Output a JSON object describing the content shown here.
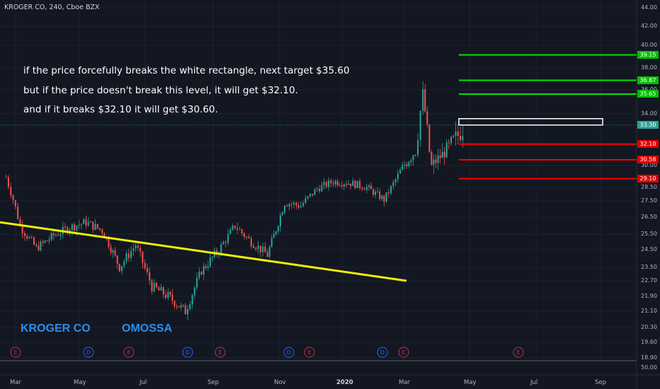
{
  "header": {
    "symbol_label": "KROGER CO, 240, Cboe BZX"
  },
  "annotations": [
    "if the price forcefully breaks the white rectangle, next target $35.60",
    "but if the price doesn't break this level, it will get $32.10.",
    "and if it breaks $32.10 it will get $30.60."
  ],
  "branding": {
    "left": "KROGER CO",
    "right": "OMOSSA"
  },
  "colors": {
    "background": "#131722",
    "up_candle": "#26a69a",
    "down_candle": "#ef5350",
    "trendline": "#f0f000",
    "target_line": "#00e600",
    "support_line": "#ff0000",
    "brand_text": "#2d8cf0"
  },
  "chart_data": {
    "type": "candlestick",
    "title": "KROGER CO, 240, Cboe BZX",
    "price_axis_ticks": [
      "44.00",
      "42.00",
      "40.00",
      "38.00",
      "36.00",
      "34.00",
      "32.00",
      "30.00",
      "28.50",
      "27.50",
      "26.50",
      "25.50",
      "24.50",
      "23.50",
      "22.70",
      "21.90",
      "21.10",
      "20.30",
      "19.60",
      "18.90",
      "50.00"
    ],
    "date_axis_ticks": [
      {
        "label": "Mar",
        "bold": false
      },
      {
        "label": "May",
        "bold": false
      },
      {
        "label": "Jul",
        "bold": false
      },
      {
        "label": "Sep",
        "bold": false
      },
      {
        "label": "Nov",
        "bold": false
      },
      {
        "label": "2020",
        "bold": true
      },
      {
        "label": "Mar",
        "bold": false
      },
      {
        "label": "May",
        "bold": false
      },
      {
        "label": "Jul",
        "bold": false
      },
      {
        "label": "Sep",
        "bold": false
      }
    ],
    "horizontal_levels": [
      {
        "price": 39.15,
        "label": "39.15",
        "color": "#00e600"
      },
      {
        "price": 36.87,
        "label": "36.87",
        "color": "#00e600"
      },
      {
        "price": 35.65,
        "label": "35.65",
        "color": "#00e600"
      },
      {
        "price": 33.3,
        "label": "33.30",
        "color": "#26a69a",
        "type": "last_price"
      },
      {
        "price": 32.1,
        "label": "32.10",
        "color": "#ff0000"
      },
      {
        "price": 30.58,
        "label": "30.58",
        "color": "#ff0000"
      },
      {
        "price": 29.1,
        "label": "29.10",
        "color": "#ff0000"
      }
    ],
    "rectangle": {
      "price_low": 33.3,
      "price_high": 33.7,
      "color": "#ffffff"
    },
    "trendline": {
      "start": {
        "date": "2019-02",
        "price": 26.2
      },
      "end": {
        "date": "2020-03",
        "price": 22.7
      },
      "color": "#f0f000"
    },
    "event_markers": [
      "E",
      "D",
      "E",
      "D",
      "E",
      "D",
      "E",
      "D",
      "E",
      "E"
    ],
    "series_close_path": [
      {
        "date": "2019-02-20",
        "price": 29.2
      },
      {
        "date": "2019-03-05",
        "price": 26.0
      },
      {
        "date": "2019-03-20",
        "price": 24.6
      },
      {
        "date": "2019-04-05",
        "price": 25.4
      },
      {
        "date": "2019-04-20",
        "price": 25.9
      },
      {
        "date": "2019-05-05",
        "price": 26.2
      },
      {
        "date": "2019-05-20",
        "price": 25.7
      },
      {
        "date": "2019-06-05",
        "price": 23.5
      },
      {
        "date": "2019-06-20",
        "price": 24.8
      },
      {
        "date": "2019-07-05",
        "price": 22.4
      },
      {
        "date": "2019-07-20",
        "price": 21.9
      },
      {
        "date": "2019-08-05",
        "price": 21.1
      },
      {
        "date": "2019-08-20",
        "price": 23.3
      },
      {
        "date": "2019-09-05",
        "price": 24.5
      },
      {
        "date": "2019-09-20",
        "price": 26.0
      },
      {
        "date": "2019-10-05",
        "price": 25.0
      },
      {
        "date": "2019-10-20",
        "price": 24.2
      },
      {
        "date": "2019-11-05",
        "price": 27.4
      },
      {
        "date": "2019-11-20",
        "price": 27.2
      },
      {
        "date": "2019-12-05",
        "price": 28.4
      },
      {
        "date": "2019-12-20",
        "price": 28.9
      },
      {
        "date": "2020-01-05",
        "price": 28.8
      },
      {
        "date": "2020-01-20",
        "price": 28.5
      },
      {
        "date": "2020-02-05",
        "price": 27.6
      },
      {
        "date": "2020-02-20",
        "price": 29.6
      },
      {
        "date": "2020-03-05",
        "price": 31.5
      },
      {
        "date": "2020-03-12",
        "price": 35.6
      },
      {
        "date": "2020-03-20",
        "price": 30.0
      },
      {
        "date": "2020-04-05",
        "price": 31.8
      },
      {
        "date": "2020-04-20",
        "price": 33.3
      }
    ]
  }
}
